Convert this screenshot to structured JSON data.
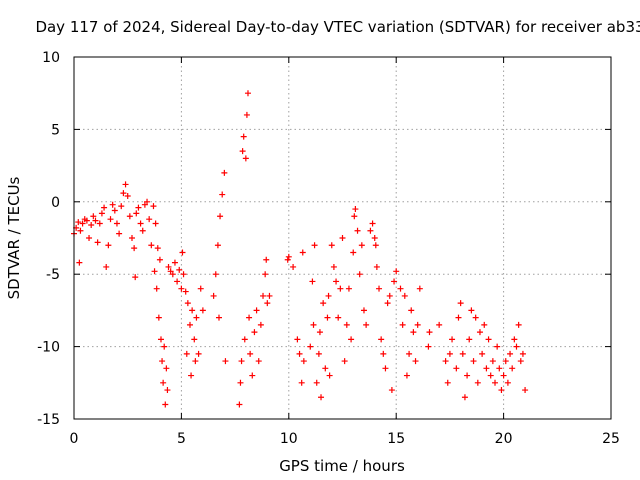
{
  "chart_data": {
    "type": "scatter",
    "title": "Day 117 of 2024, Sidereal Day-to-day VTEC variation (SDTVAR) for receiver ab33",
    "xlabel": "GPS time / hours",
    "ylabel": "SDTVAR / TECUs",
    "xlim": [
      0,
      25
    ],
    "ylim": [
      -15,
      10
    ],
    "xticks": [
      "0",
      "5",
      "10",
      "15",
      "20",
      "25"
    ],
    "yticks": [
      "-15",
      "-10",
      "-5",
      "0",
      "5",
      "10"
    ],
    "grid": true,
    "marker": "plus",
    "color": "#ff0000",
    "series": [
      {
        "name": "SDTVAR",
        "points": [
          [
            0.0,
            -2.2
          ],
          [
            0.1,
            -1.8
          ],
          [
            0.2,
            -1.4
          ],
          [
            0.25,
            -4.2
          ],
          [
            0.3,
            -2.0
          ],
          [
            0.4,
            -1.5
          ],
          [
            0.5,
            -1.2
          ],
          [
            0.6,
            -1.3
          ],
          [
            0.7,
            -2.5
          ],
          [
            0.8,
            -1.6
          ],
          [
            0.9,
            -1.0
          ],
          [
            1.0,
            -1.3
          ],
          [
            1.1,
            -2.8
          ],
          [
            1.2,
            -1.5
          ],
          [
            1.3,
            -0.8
          ],
          [
            1.4,
            -0.4
          ],
          [
            1.5,
            -4.5
          ],
          [
            1.6,
            -3.0
          ],
          [
            1.7,
            -1.2
          ],
          [
            1.8,
            -0.2
          ],
          [
            1.9,
            -0.6
          ],
          [
            2.0,
            -1.5
          ],
          [
            2.1,
            -2.2
          ],
          [
            2.2,
            -0.3
          ],
          [
            2.3,
            0.6
          ],
          [
            2.4,
            1.2
          ],
          [
            2.5,
            0.4
          ],
          [
            2.6,
            -1.0
          ],
          [
            2.7,
            -2.5
          ],
          [
            2.8,
            -3.2
          ],
          [
            2.85,
            -5.2
          ],
          [
            2.9,
            -0.8
          ],
          [
            3.0,
            -0.4
          ],
          [
            3.1,
            -1.5
          ],
          [
            3.2,
            -2.0
          ],
          [
            3.3,
            -0.2
          ],
          [
            3.4,
            0.0
          ],
          [
            3.5,
            -1.2
          ],
          [
            3.6,
            -3.0
          ],
          [
            3.7,
            -0.3
          ],
          [
            3.75,
            -4.8
          ],
          [
            3.8,
            -1.5
          ],
          [
            3.85,
            -6.0
          ],
          [
            3.9,
            -3.2
          ],
          [
            3.95,
            -8.0
          ],
          [
            4.0,
            -4.0
          ],
          [
            4.05,
            -9.5
          ],
          [
            4.1,
            -11.0
          ],
          [
            4.15,
            -12.5
          ],
          [
            4.2,
            -10.0
          ],
          [
            4.25,
            -14.0
          ],
          [
            4.3,
            -11.5
          ],
          [
            4.35,
            -13.0
          ],
          [
            4.4,
            -4.5
          ],
          [
            4.5,
            -4.8
          ],
          [
            4.6,
            -5.0
          ],
          [
            4.7,
            -4.2
          ],
          [
            4.8,
            -5.5
          ],
          [
            4.9,
            -4.7
          ],
          [
            5.0,
            -6.0
          ],
          [
            5.05,
            -3.5
          ],
          [
            5.1,
            -5.0
          ],
          [
            5.2,
            -6.2
          ],
          [
            5.25,
            -10.5
          ],
          [
            5.3,
            -7.0
          ],
          [
            5.4,
            -8.5
          ],
          [
            5.45,
            -12.0
          ],
          [
            5.5,
            -7.5
          ],
          [
            5.6,
            -9.5
          ],
          [
            5.65,
            -11.0
          ],
          [
            5.7,
            -8.0
          ],
          [
            5.8,
            -10.5
          ],
          [
            5.9,
            -6.0
          ],
          [
            6.0,
            -7.5
          ],
          [
            6.5,
            -6.5
          ],
          [
            6.6,
            -5.0
          ],
          [
            6.7,
            -3.0
          ],
          [
            6.75,
            -8.0
          ],
          [
            6.8,
            -1.0
          ],
          [
            6.9,
            0.5
          ],
          [
            7.0,
            2.0
          ],
          [
            7.05,
            -11.0
          ],
          [
            7.7,
            -14.0
          ],
          [
            7.75,
            -12.5
          ],
          [
            7.8,
            -11.0
          ],
          [
            7.85,
            3.5
          ],
          [
            7.9,
            4.5
          ],
          [
            7.95,
            -9.5
          ],
          [
            8.0,
            3.0
          ],
          [
            8.05,
            6.0
          ],
          [
            8.1,
            7.5
          ],
          [
            8.15,
            -8.0
          ],
          [
            8.2,
            -10.5
          ],
          [
            8.3,
            -12.0
          ],
          [
            8.4,
            -9.0
          ],
          [
            8.5,
            -7.5
          ],
          [
            8.6,
            -11.0
          ],
          [
            8.7,
            -8.5
          ],
          [
            8.8,
            -6.5
          ],
          [
            8.9,
            -5.0
          ],
          [
            8.95,
            -4.0
          ],
          [
            9.0,
            -7.0
          ],
          [
            9.1,
            -6.5
          ],
          [
            9.95,
            -4.0
          ],
          [
            10.0,
            -3.8
          ],
          [
            10.2,
            -4.5
          ],
          [
            10.4,
            -9.5
          ],
          [
            10.5,
            -10.5
          ],
          [
            10.6,
            -12.5
          ],
          [
            10.65,
            -3.5
          ],
          [
            10.7,
            -11.0
          ],
          [
            11.0,
            -10.0
          ],
          [
            11.1,
            -5.5
          ],
          [
            11.15,
            -8.5
          ],
          [
            11.2,
            -3.0
          ],
          [
            11.3,
            -12.5
          ],
          [
            11.4,
            -10.5
          ],
          [
            11.45,
            -9.0
          ],
          [
            11.5,
            -13.5
          ],
          [
            11.6,
            -7.0
          ],
          [
            11.7,
            -11.5
          ],
          [
            11.8,
            -8.0
          ],
          [
            11.85,
            -6.5
          ],
          [
            11.9,
            -12.0
          ],
          [
            12.0,
            -3.0
          ],
          [
            12.1,
            -4.5
          ],
          [
            12.2,
            -5.5
          ],
          [
            12.3,
            -8.0
          ],
          [
            12.4,
            -6.0
          ],
          [
            12.5,
            -2.5
          ],
          [
            12.6,
            -11.0
          ],
          [
            12.7,
            -8.5
          ],
          [
            12.8,
            -6.0
          ],
          [
            12.9,
            -9.5
          ],
          [
            13.0,
            -3.5
          ],
          [
            13.05,
            -1.0
          ],
          [
            13.1,
            -0.5
          ],
          [
            13.2,
            -2.0
          ],
          [
            13.3,
            -5.0
          ],
          [
            13.4,
            -3.0
          ],
          [
            13.5,
            -7.5
          ],
          [
            13.6,
            -8.5
          ],
          [
            13.8,
            -2.0
          ],
          [
            13.9,
            -1.5
          ],
          [
            14.0,
            -2.5
          ],
          [
            14.05,
            -3.0
          ],
          [
            14.1,
            -4.5
          ],
          [
            14.2,
            -6.0
          ],
          [
            14.3,
            -9.5
          ],
          [
            14.4,
            -10.5
          ],
          [
            14.5,
            -11.5
          ],
          [
            14.6,
            -7.0
          ],
          [
            14.7,
            -6.5
          ],
          [
            14.8,
            -13.0
          ],
          [
            14.9,
            -5.5
          ],
          [
            15.0,
            -4.8
          ],
          [
            15.2,
            -6.0
          ],
          [
            15.3,
            -8.5
          ],
          [
            15.4,
            -6.5
          ],
          [
            15.5,
            -12.0
          ],
          [
            15.6,
            -10.5
          ],
          [
            15.7,
            -7.5
          ],
          [
            15.8,
            -9.0
          ],
          [
            15.9,
            -11.0
          ],
          [
            16.0,
            -8.5
          ],
          [
            16.1,
            -6.0
          ],
          [
            16.5,
            -10.0
          ],
          [
            16.55,
            -9.0
          ],
          [
            17.0,
            -8.5
          ],
          [
            17.3,
            -11.0
          ],
          [
            17.4,
            -12.5
          ],
          [
            17.5,
            -10.5
          ],
          [
            17.6,
            -9.5
          ],
          [
            17.8,
            -11.5
          ],
          [
            17.9,
            -8.0
          ],
          [
            18.0,
            -7.0
          ],
          [
            18.1,
            -10.5
          ],
          [
            18.2,
            -13.5
          ],
          [
            18.3,
            -12.0
          ],
          [
            18.4,
            -9.5
          ],
          [
            18.5,
            -7.5
          ],
          [
            18.6,
            -11.0
          ],
          [
            18.7,
            -8.0
          ],
          [
            18.8,
            -12.5
          ],
          [
            18.9,
            -9.0
          ],
          [
            19.0,
            -10.5
          ],
          [
            19.1,
            -8.5
          ],
          [
            19.2,
            -11.5
          ],
          [
            19.3,
            -9.5
          ],
          [
            19.4,
            -12.0
          ],
          [
            19.5,
            -11.0
          ],
          [
            19.6,
            -12.5
          ],
          [
            19.7,
            -10.0
          ],
          [
            19.8,
            -11.5
          ],
          [
            19.9,
            -13.0
          ],
          [
            20.0,
            -12.0
          ],
          [
            20.1,
            -11.0
          ],
          [
            20.2,
            -12.5
          ],
          [
            20.3,
            -10.5
          ],
          [
            20.4,
            -11.5
          ],
          [
            20.5,
            -9.5
          ],
          [
            20.6,
            -10.0
          ],
          [
            20.7,
            -8.5
          ],
          [
            20.8,
            -11.0
          ],
          [
            20.9,
            -10.5
          ],
          [
            21.0,
            -13.0
          ]
        ]
      }
    ]
  }
}
